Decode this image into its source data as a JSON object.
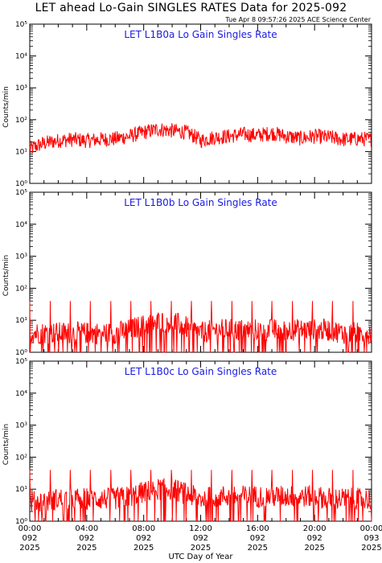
{
  "title": "LET ahead Lo-Gain SINGLES RATES Data for 2025-092",
  "timestamp": "Tue Apr  8 09:57:26 2025 ACE Science Center",
  "colors": {
    "data": "#ff0000",
    "panel_title": "#1a1ae6",
    "axes": "#000000"
  },
  "chart_data": [
    {
      "type": "line",
      "title": "LET L1B0a Lo Gain Singles Rate",
      "ylabel": "Counts/min",
      "yscale": "log",
      "ylim": [
        1,
        100000
      ],
      "y_ticks": [
        "10^0",
        "10^1",
        "10^2",
        "10^3",
        "10^4",
        "10^5"
      ],
      "xlim_hours": [
        0,
        24
      ],
      "series": [
        {
          "x_hours": [
            0,
            1,
            2,
            3,
            4,
            5,
            6,
            7,
            8,
            9,
            10,
            11,
            12,
            13,
            14,
            15,
            16,
            17,
            18,
            19,
            20,
            21,
            22,
            23,
            24
          ],
          "values": [
            12,
            18,
            22,
            24,
            22,
            24,
            25,
            30,
            40,
            50,
            45,
            40,
            22,
            28,
            30,
            35,
            32,
            38,
            30,
            26,
            30,
            28,
            24,
            25,
            24
          ]
        }
      ]
    },
    {
      "type": "line",
      "title": "LET L1B0b Lo Gain Singles Rate",
      "ylabel": "Counts/min",
      "yscale": "log",
      "ylim": [
        1,
        100000
      ],
      "y_ticks": [
        "10^0",
        "10^1",
        "10^2",
        "10^3",
        "10^4",
        "10^5"
      ],
      "xlim_hours": [
        0,
        24
      ],
      "series": [
        {
          "x_hours": [
            0,
            1,
            2,
            3,
            4,
            5,
            6,
            7,
            8,
            9,
            10,
            11,
            12,
            13,
            14,
            15,
            16,
            17,
            18,
            19,
            20,
            21,
            22,
            23,
            24
          ],
          "values": [
            4,
            4,
            4,
            4,
            4,
            4,
            4,
            5,
            7,
            9,
            9,
            6,
            4,
            5,
            5,
            5,
            5,
            5,
            5,
            5,
            5,
            5,
            4,
            4,
            4
          ]
        }
      ]
    },
    {
      "type": "line",
      "title": "LET L1B0c Lo Gain Singles Rate",
      "ylabel": "Counts/min",
      "yscale": "log",
      "ylim": [
        1,
        100000
      ],
      "y_ticks": [
        "10^0",
        "10^1",
        "10^2",
        "10^3",
        "10^4",
        "10^5"
      ],
      "xlim_hours": [
        0,
        24
      ],
      "series": [
        {
          "x_hours": [
            0,
            1,
            2,
            3,
            4,
            5,
            6,
            7,
            8,
            9,
            10,
            11,
            12,
            13,
            14,
            15,
            16,
            17,
            18,
            19,
            20,
            21,
            22,
            23,
            24
          ],
          "values": [
            4,
            4,
            5,
            5,
            5,
            5,
            5,
            6,
            8,
            10,
            10,
            7,
            5,
            6,
            6,
            6,
            6,
            6,
            6,
            6,
            6,
            5,
            5,
            5,
            5
          ]
        }
      ]
    }
  ],
  "x_ticks": [
    {
      "hours": 0,
      "time": "00:00",
      "doy": "092",
      "year": "2025"
    },
    {
      "hours": 4,
      "time": "04:00",
      "doy": "092",
      "year": "2025"
    },
    {
      "hours": 8,
      "time": "08:00",
      "doy": "092",
      "year": "2025"
    },
    {
      "hours": 12,
      "time": "12:00",
      "doy": "092",
      "year": "2025"
    },
    {
      "hours": 16,
      "time": "16:00",
      "doy": "092",
      "year": "2025"
    },
    {
      "hours": 20,
      "time": "20:00",
      "doy": "092",
      "year": "2025"
    },
    {
      "hours": 24,
      "time": "00:00",
      "doy": "093",
      "year": "2025"
    }
  ],
  "xlabel": "UTC Day of Year"
}
